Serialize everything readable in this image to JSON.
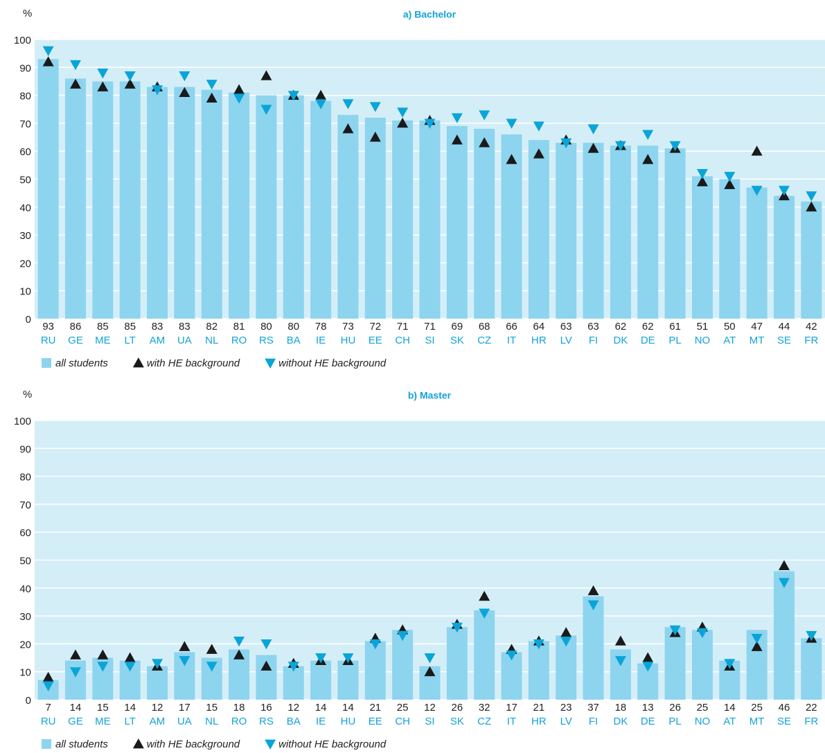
{
  "chart_data": [
    {
      "type": "bar",
      "title": "a) Bachelor",
      "y_label": "%",
      "categories": [
        "RU",
        "GE",
        "ME",
        "LT",
        "AM",
        "UA",
        "NL",
        "RO",
        "RS",
        "BA",
        "IE",
        "HU",
        "EE",
        "CH",
        "SI",
        "SK",
        "CZ",
        "IT",
        "HR",
        "LV",
        "FI",
        "DK",
        "DE",
        "PL",
        "NO",
        "AT",
        "MT",
        "SE",
        "FR"
      ],
      "series": [
        {
          "name": "all students",
          "style": "bar",
          "color": "#8dd4ef",
          "values": [
            93,
            86,
            85,
            85,
            83,
            83,
            82,
            81,
            80,
            80,
            78,
            73,
            72,
            71,
            71,
            69,
            68,
            66,
            64,
            63,
            63,
            62,
            62,
            61,
            51,
            50,
            47,
            44,
            42
          ]
        },
        {
          "name": "with HE background",
          "style": "triangle-up",
          "color": "#1a1a1a",
          "values": [
            92,
            84,
            83,
            84,
            83,
            81,
            79,
            82,
            87,
            80,
            80,
            68,
            65,
            70,
            71,
            64,
            63,
            57,
            59,
            64,
            61,
            62,
            57,
            61,
            49,
            48,
            60,
            44,
            40
          ]
        },
        {
          "name": "without HE background",
          "style": "triangle-down",
          "color": "#0aa5d8",
          "values": [
            96,
            91,
            88,
            87,
            82,
            87,
            84,
            79,
            75,
            80,
            77,
            77,
            76,
            74,
            70,
            72,
            73,
            70,
            69,
            63,
            68,
            62,
            66,
            62,
            52,
            51,
            46,
            46,
            44
          ]
        }
      ],
      "ylim": [
        0,
        100
      ],
      "yticks": [
        0,
        10,
        20,
        30,
        40,
        50,
        60,
        70,
        80,
        90,
        100
      ],
      "grid": true
    },
    {
      "type": "bar",
      "title": "b) Master",
      "y_label": "%",
      "categories": [
        "RU",
        "GE",
        "ME",
        "LT",
        "AM",
        "UA",
        "NL",
        "RO",
        "RS",
        "BA",
        "IE",
        "HU",
        "EE",
        "CH",
        "SI",
        "SK",
        "CZ",
        "IT",
        "HR",
        "LV",
        "FI",
        "DK",
        "DE",
        "PL",
        "NO",
        "AT",
        "MT",
        "SE",
        "FR"
      ],
      "series": [
        {
          "name": "all students",
          "style": "bar",
          "color": "#8dd4ef",
          "values": [
            7,
            14,
            15,
            14,
            12,
            17,
            15,
            18,
            16,
            12,
            14,
            14,
            21,
            25,
            12,
            26,
            32,
            17,
            21,
            23,
            37,
            18,
            13,
            26,
            25,
            14,
            25,
            46,
            22
          ]
        },
        {
          "name": "with HE background",
          "style": "triangle-up",
          "color": "#1a1a1a",
          "values": [
            8,
            16,
            16,
            15,
            12,
            19,
            18,
            16,
            12,
            13,
            14,
            14,
            22,
            25,
            10,
            27,
            37,
            18,
            21,
            24,
            39,
            21,
            15,
            24,
            26,
            12,
            19,
            48,
            22
          ]
        },
        {
          "name": "without HE background",
          "style": "triangle-down",
          "color": "#0aa5d8",
          "values": [
            5,
            10,
            12,
            12,
            13,
            14,
            12,
            21,
            20,
            12,
            15,
            15,
            20,
            23,
            15,
            26,
            31,
            16,
            20,
            21,
            34,
            14,
            12,
            25,
            24,
            13,
            22,
            42,
            23
          ]
        }
      ],
      "ylim": [
        0,
        100
      ],
      "yticks": [
        0,
        10,
        20,
        30,
        40,
        50,
        60,
        70,
        80,
        90,
        100
      ],
      "grid": true
    }
  ]
}
